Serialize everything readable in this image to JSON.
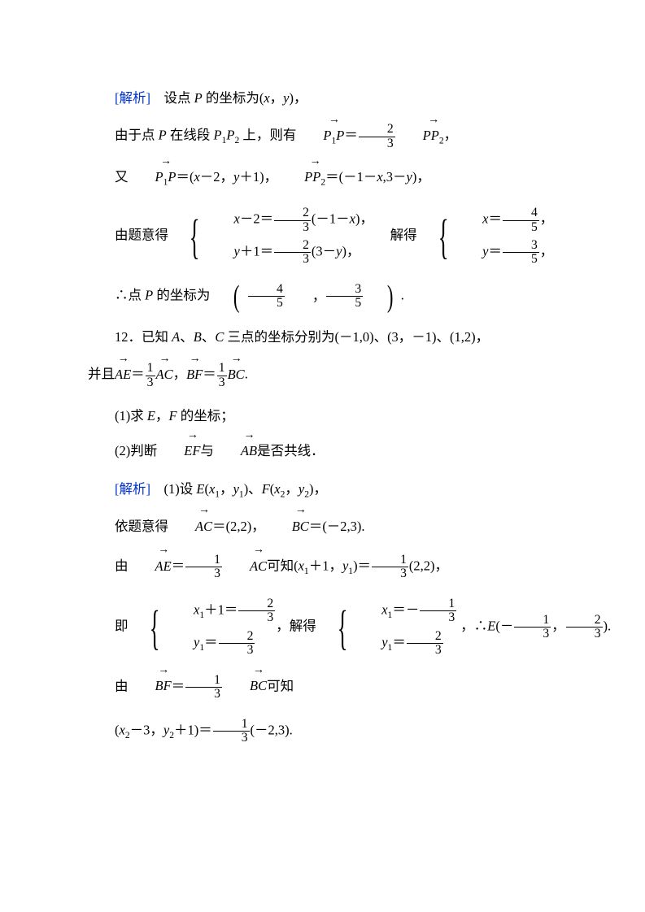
{
  "colors": {
    "text": "#000000",
    "accent": "#0033cc",
    "background": "#ffffff",
    "rule": "#000000"
  },
  "typography": {
    "base_font_size_pt": 12,
    "math_font": "Times New Roman italic",
    "cjk_font": "SimSun",
    "line_spacing_em": 2.1
  },
  "l1": {
    "label": "[解析]",
    "text1": "设点 ",
    "P": "P",
    "text2": " 的坐标为(",
    "x": "x",
    "c1": "，",
    "y": "y",
    "c2": ")，"
  },
  "l2": {
    "t1": "由于点 ",
    "P": "P",
    "t2": " 在线段 ",
    "P1": "P",
    "s1": "1",
    "P2": "P",
    "s2": "2",
    "t3": " 上，则有",
    "vec1_a": "P",
    "vec1_s": "1",
    "vec1_b": "P",
    "eq": "＝",
    "fr_n": "2",
    "fr_d": "3",
    "vec2_a": "P",
    "vec2_b": "P",
    "vec2_s": "2",
    "tail": "，"
  },
  "l3": {
    "t1": "又",
    "v1a": "P",
    "v1s": "1",
    "v1b": "P",
    "eq1": "＝(",
    "x": "x",
    "m2": "－2，",
    "y": "y",
    "p1": "＋1)，",
    "v2a": "P",
    "v2b": "P",
    "v2s": "2",
    "eq2": "＝(－1－",
    "x2": "x",
    "c": ",",
    "n3": "3－",
    "y2": "y",
    "t2": ")，"
  },
  "l4": {
    "lead": "由题意得",
    "r1a": "x",
    "r1b": "－2＝",
    "r1n": "2",
    "r1d": "3",
    "r1c": "(－1－",
    "r1x": "x",
    "r1e": ")，",
    "r2a": "y",
    "r2b": "＋1＝",
    "r2n": "2",
    "r2d": "3",
    "r2c": "(3－",
    "r2y": "y",
    "r2e": ")，",
    "mid": "解得",
    "s1a": "x",
    "s1b": "＝",
    "s1n": "4",
    "s1d": "5",
    "s1e": "，",
    "s2a": "y",
    "s2b": "＝",
    "s2n": "3",
    "s2d": "5",
    "s2e": "，"
  },
  "l5": {
    "t1": "∴点 ",
    "P": "P",
    "t2": " 的坐标为",
    "fn1": "4",
    "fd1": "5",
    "c": "，",
    "fn2": "3",
    "fd2": "5",
    "tail": "."
  },
  "l6": {
    "num": "12．",
    "t1": "已知 ",
    "A": "A",
    "d1": "、",
    "B": "B",
    "d2": "、",
    "C": "C",
    "t2": " 三点的坐标分别为(－1,0)、(3，－1)、(1,2)，"
  },
  "l7": {
    "t1": "并且",
    "v1": "AE",
    "eq1": "＝",
    "n1": "1",
    "d1": "3",
    "v2": "AC",
    "c": "，",
    "v3": "BF",
    "eq2": "＝",
    "n2": "1",
    "d2": "3",
    "v4": "BC",
    "tail": "."
  },
  "l8": {
    "t": "(1)求 ",
    "E": "E",
    "c": "，",
    "F": "F",
    "t2": " 的坐标；"
  },
  "l9": {
    "t": "(2)判断",
    "v1": "EF",
    "m": "与",
    "v2": "AB",
    "t2": "是否共线．"
  },
  "l10": {
    "label": "[解析]",
    "t1": "(1)设 ",
    "E": "E",
    "p1": "(",
    "x1": "x",
    "s1": "1",
    "c1": "，",
    "y1": "y",
    "sy1": "1",
    "p2": ")、",
    "F": "F",
    "p3": "(",
    "x2": "x",
    "s2": "2",
    "c2": "，",
    "y2": "y",
    "sy2": "2",
    "p4": ")，"
  },
  "l11": {
    "t1": "依题意得",
    "v1": "AC",
    "eq1": "＝(2,2)，",
    "v2": "BC",
    "eq2": "＝(－2,3)."
  },
  "l12": {
    "t1": "由",
    "v1": "AE",
    "eq": "＝",
    "n": "1",
    "d": "3",
    "v2": "AC",
    "t2": "可知(",
    "x1": "x",
    "s1": "1",
    "p1": "＋1，",
    "y1": "y",
    "sy1": "1",
    "p2": ")＝",
    "n2": "1",
    "d2": "3",
    "t3": "(2,2)，"
  },
  "l13": {
    "lead": "即",
    "r1a": "x",
    "r1s": "1",
    "r1b": "＋1＝",
    "r1n": "2",
    "r1d": "3",
    "r2a": "y",
    "r2s": "1",
    "r2b": "＝",
    "r2n": "2",
    "r2d": "3",
    "mid": "，解得",
    "s1a": "x",
    "s1s": "1",
    "s1b": "＝－",
    "s1n": "1",
    "s1d": "3",
    "s2a": "y",
    "s2s": "1",
    "s2b": "＝",
    "s2n": "2",
    "s2d": "3",
    "t": "，∴",
    "E": "E",
    "p1": "(－",
    "en1": "1",
    "ed1": "3",
    "c": "，",
    "en2": "2",
    "ed2": "3",
    "p2": ")."
  },
  "l14": {
    "t1": "由",
    "v1": "BF",
    "eq": "＝",
    "n": "1",
    "d": "3",
    "v2": "BC",
    "t2": "可知"
  },
  "l15": {
    "p1": "(",
    "x2": "x",
    "s2": "2",
    "m": "－3，",
    "y2": "y",
    "sy2": "2",
    "p2": "＋1)＝",
    "n": "1",
    "d": "3",
    "t": "(－2,3)."
  }
}
